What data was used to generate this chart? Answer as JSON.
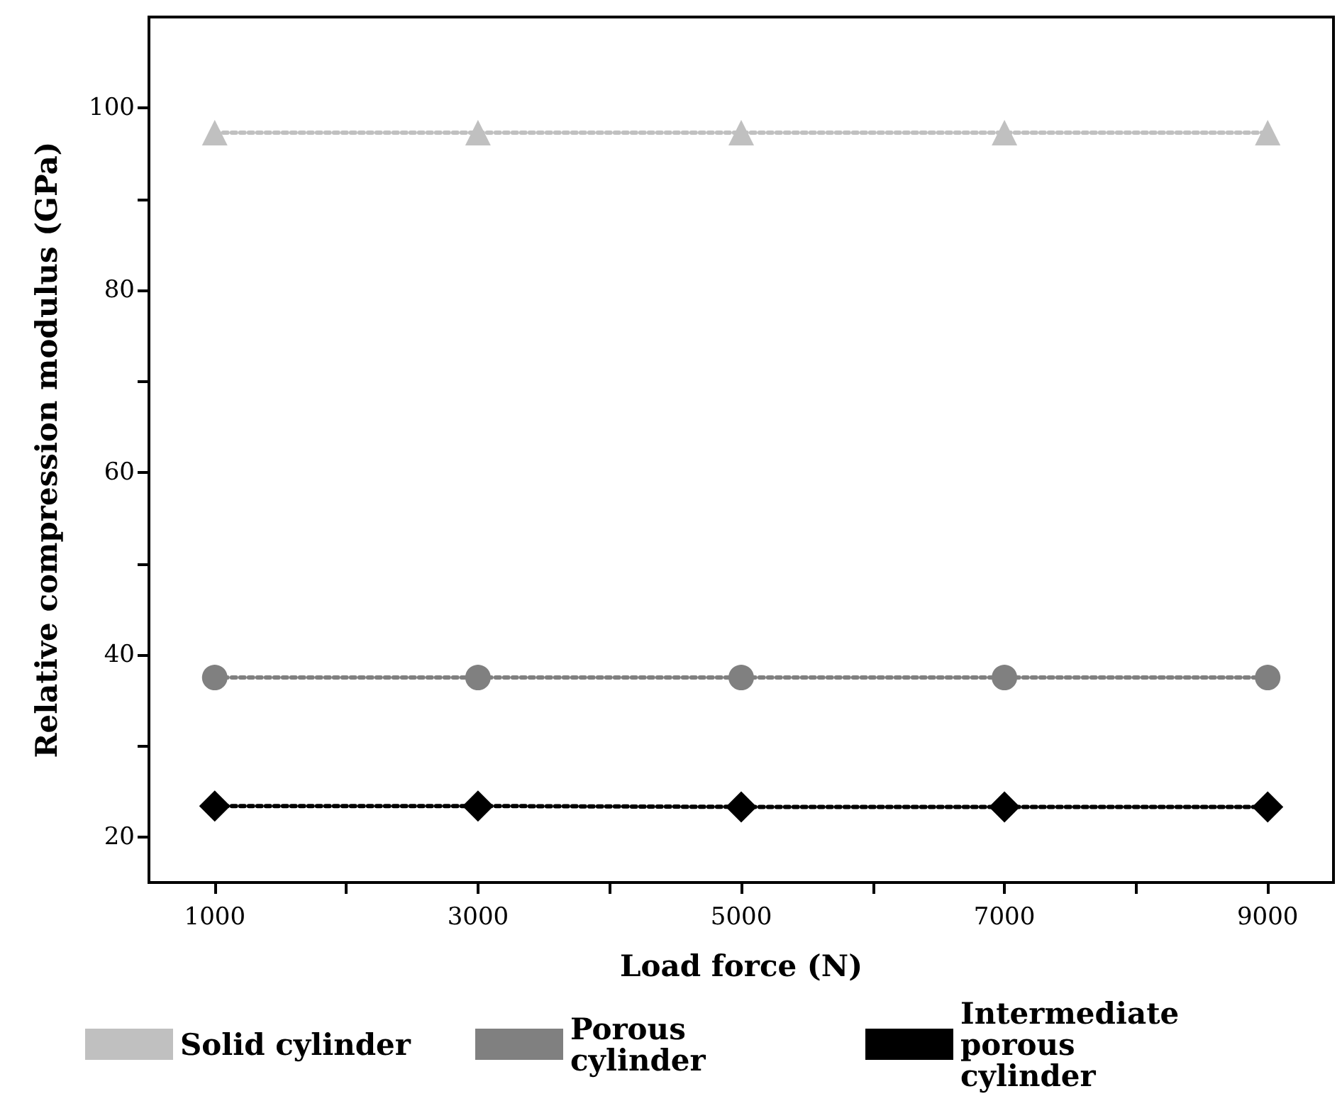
{
  "chart_data": {
    "type": "line",
    "xlabel": "Load force (N)",
    "ylabel": "Relative compression modulus (GPa)",
    "x": [
      1000,
      3000,
      5000,
      7000,
      9000
    ],
    "series": [
      {
        "name": "Solid cylinder",
        "color": "#c0c0c0",
        "marker": "triangle",
        "values": [
          97.3,
          97.3,
          97.3,
          97.3,
          97.3
        ]
      },
      {
        "name": "Porous cylinder",
        "color": "#808080",
        "marker": "circle",
        "values": [
          37.5,
          37.5,
          37.5,
          37.5,
          37.5
        ]
      },
      {
        "name": "Intermediate porous cylinder",
        "color": "#000000",
        "marker": "diamond",
        "values": [
          23.4,
          23.4,
          23.3,
          23.3,
          23.3
        ]
      }
    ],
    "xlim": [
      500,
      9500
    ],
    "xticks": [
      1000,
      {
        "value": 2000,
        "label": null
      },
      3000,
      {
        "value": 4000,
        "label": null
      },
      5000,
      {
        "value": 6000,
        "label": null
      },
      7000,
      {
        "value": 8000,
        "label": null
      },
      9000
    ],
    "ylim": [
      15,
      110
    ],
    "yticks": [
      20,
      {
        "value": 30,
        "label": null
      },
      40,
      {
        "value": 50,
        "label": null
      },
      60,
      {
        "value": 70,
        "label": null
      },
      80,
      {
        "value": 90,
        "label": null
      },
      100
    ],
    "line_style": "dotted",
    "grid": false,
    "legend": "bottom"
  }
}
